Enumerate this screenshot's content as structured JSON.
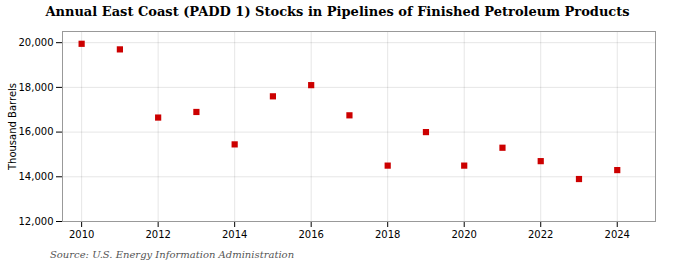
{
  "chart_data": {
    "type": "scatter",
    "title": "Annual East Coast (PADD 1) Stocks in Pipelines of Finished Petroleum Products",
    "ylabel": "Thousand Barrels",
    "source": "Source: U.S. Energy Information Administration",
    "x": [
      2010,
      2011,
      2012,
      2013,
      2014,
      2015,
      2016,
      2017,
      2018,
      2019,
      2020,
      2021,
      2022,
      2023,
      2024
    ],
    "values": [
      19950,
      19700,
      16650,
      16900,
      15450,
      17600,
      18100,
      16750,
      14500,
      16000,
      14500,
      15300,
      14700,
      13900,
      14300
    ],
    "color": "#cc0000",
    "marker": "square",
    "xlim": [
      2009.5,
      2025.0
    ],
    "ylim": [
      12000,
      20500
    ],
    "xticks": [
      2010,
      2012,
      2014,
      2016,
      2018,
      2020,
      2022,
      2024
    ],
    "yticks": [
      {
        "value": 12000,
        "label": "12,000"
      },
      {
        "value": 14000,
        "label": "14,000"
      },
      {
        "value": 16000,
        "label": "16,000"
      },
      {
        "value": 18000,
        "label": "18,000"
      },
      {
        "value": 20000,
        "label": "20,000"
      }
    ],
    "grid": true
  }
}
